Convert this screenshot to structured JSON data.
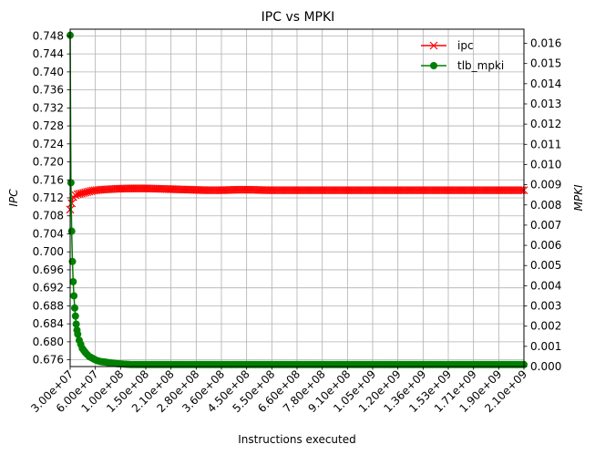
{
  "chart_data": {
    "type": "line",
    "title": "IPC vs MPKI",
    "xlabel": "Instructions executed",
    "ylabel_left": "IPC",
    "ylabel_right": "MPKI",
    "grid": true,
    "legend_position": "top-right",
    "x_tick_labels": [
      "3.00e+07",
      "6.00e+07",
      "1.00e+08",
      "1.50e+08",
      "2.10e+08",
      "2.80e+08",
      "3.60e+08",
      "4.50e+08",
      "5.50e+08",
      "6.60e+08",
      "7.80e+08",
      "9.10e+08",
      "1.05e+09",
      "1.20e+09",
      "1.36e+09",
      "1.53e+09",
      "1.71e+09",
      "1.90e+09",
      "2.10e+09"
    ],
    "y_left": {
      "lim": [
        0.6745,
        0.7495
      ],
      "ticks": [
        0.676,
        0.68,
        0.684,
        0.688,
        0.692,
        0.696,
        0.7,
        0.704,
        0.708,
        0.712,
        0.716,
        0.72,
        0.724,
        0.728,
        0.732,
        0.736,
        0.74,
        0.744,
        0.748
      ],
      "tick_labels": [
        "0.676",
        "0.680",
        "0.684",
        "0.688",
        "0.692",
        "0.696",
        "0.700",
        "0.704",
        "0.708",
        "0.712",
        "0.716",
        "0.720",
        "0.724",
        "0.728",
        "0.732",
        "0.736",
        "0.740",
        "0.744",
        "0.748"
      ]
    },
    "y_right": {
      "lim": [
        0.0,
        0.0167
      ],
      "ticks": [
        0.0,
        0.001,
        0.002,
        0.003,
        0.004,
        0.005,
        0.006,
        0.007,
        0.008,
        0.009,
        0.01,
        0.011,
        0.012,
        0.013,
        0.014,
        0.015,
        0.016
      ],
      "tick_labels": [
        "0.000",
        "0.001",
        "0.002",
        "0.003",
        "0.004",
        "0.005",
        "0.006",
        "0.007",
        "0.008",
        "0.009",
        "0.010",
        "0.011",
        "0.012",
        "0.013",
        "0.014",
        "0.015",
        "0.016"
      ]
    },
    "series": [
      {
        "name": "ipc",
        "axis": "left",
        "color": "#ff0000",
        "marker": "x",
        "points": [
          [
            0,
            0.7094
          ],
          [
            0.2,
            0.7108
          ],
          [
            0.4,
            0.7122
          ],
          [
            0.7,
            0.7126
          ],
          [
            1,
            0.7128
          ],
          [
            2,
            0.7132
          ],
          [
            3,
            0.7136
          ],
          [
            4,
            0.7138
          ],
          [
            6,
            0.714
          ],
          [
            8,
            0.7141
          ],
          [
            10,
            0.7141
          ],
          [
            12,
            0.714
          ],
          [
            14,
            0.7139
          ],
          [
            16,
            0.7138
          ],
          [
            18,
            0.7137
          ],
          [
            20,
            0.7137
          ],
          [
            22,
            0.7138
          ],
          [
            24,
            0.7138
          ],
          [
            26,
            0.7137
          ],
          [
            28,
            0.7137
          ],
          [
            30,
            0.7137
          ],
          [
            32,
            0.7137
          ],
          [
            34,
            0.7137
          ],
          [
            36,
            0.7137
          ],
          [
            38,
            0.7137
          ],
          [
            40,
            0.7137
          ],
          [
            42,
            0.7137
          ],
          [
            44,
            0.7137
          ],
          [
            46,
            0.7137
          ],
          [
            48,
            0.7137
          ],
          [
            50,
            0.7137
          ],
          [
            52,
            0.7137
          ],
          [
            54,
            0.7137
          ],
          [
            56,
            0.7137
          ],
          [
            58,
            0.7137
          ],
          [
            60,
            0.7137
          ]
        ]
      },
      {
        "name": "tlb_mpki",
        "axis": "right",
        "color": "#008000",
        "marker": "o",
        "points": [
          [
            0,
            0.0164
          ],
          [
            0.1,
            0.0091
          ],
          [
            0.2,
            0.0067
          ],
          [
            0.3,
            0.0052
          ],
          [
            0.4,
            0.0042
          ],
          [
            0.5,
            0.0035
          ],
          [
            0.6,
            0.0029
          ],
          [
            0.7,
            0.0025
          ],
          [
            0.8,
            0.0021
          ],
          [
            0.9,
            0.0018
          ],
          [
            1,
            0.0016
          ],
          [
            1.2,
            0.0013
          ],
          [
            1.4,
            0.0011
          ],
          [
            1.6,
            0.0009
          ],
          [
            1.8,
            0.0008
          ],
          [
            2,
            0.0007
          ],
          [
            2.5,
            0.0005
          ],
          [
            3,
            0.0004
          ],
          [
            3.5,
            0.0003
          ],
          [
            4,
            0.00025
          ],
          [
            5,
            0.0002
          ],
          [
            6,
            0.00015
          ],
          [
            8,
            0.0001
          ],
          [
            10,
            0.0001
          ],
          [
            15,
            0.0001
          ],
          [
            20,
            0.0001
          ],
          [
            25,
            0.0001
          ],
          [
            30,
            0.0001
          ],
          [
            35,
            0.0001
          ],
          [
            40,
            0.0001
          ],
          [
            45,
            0.0001
          ],
          [
            50,
            0.0001
          ],
          [
            55,
            0.0001
          ],
          [
            60,
            0.0001
          ]
        ]
      }
    ]
  }
}
